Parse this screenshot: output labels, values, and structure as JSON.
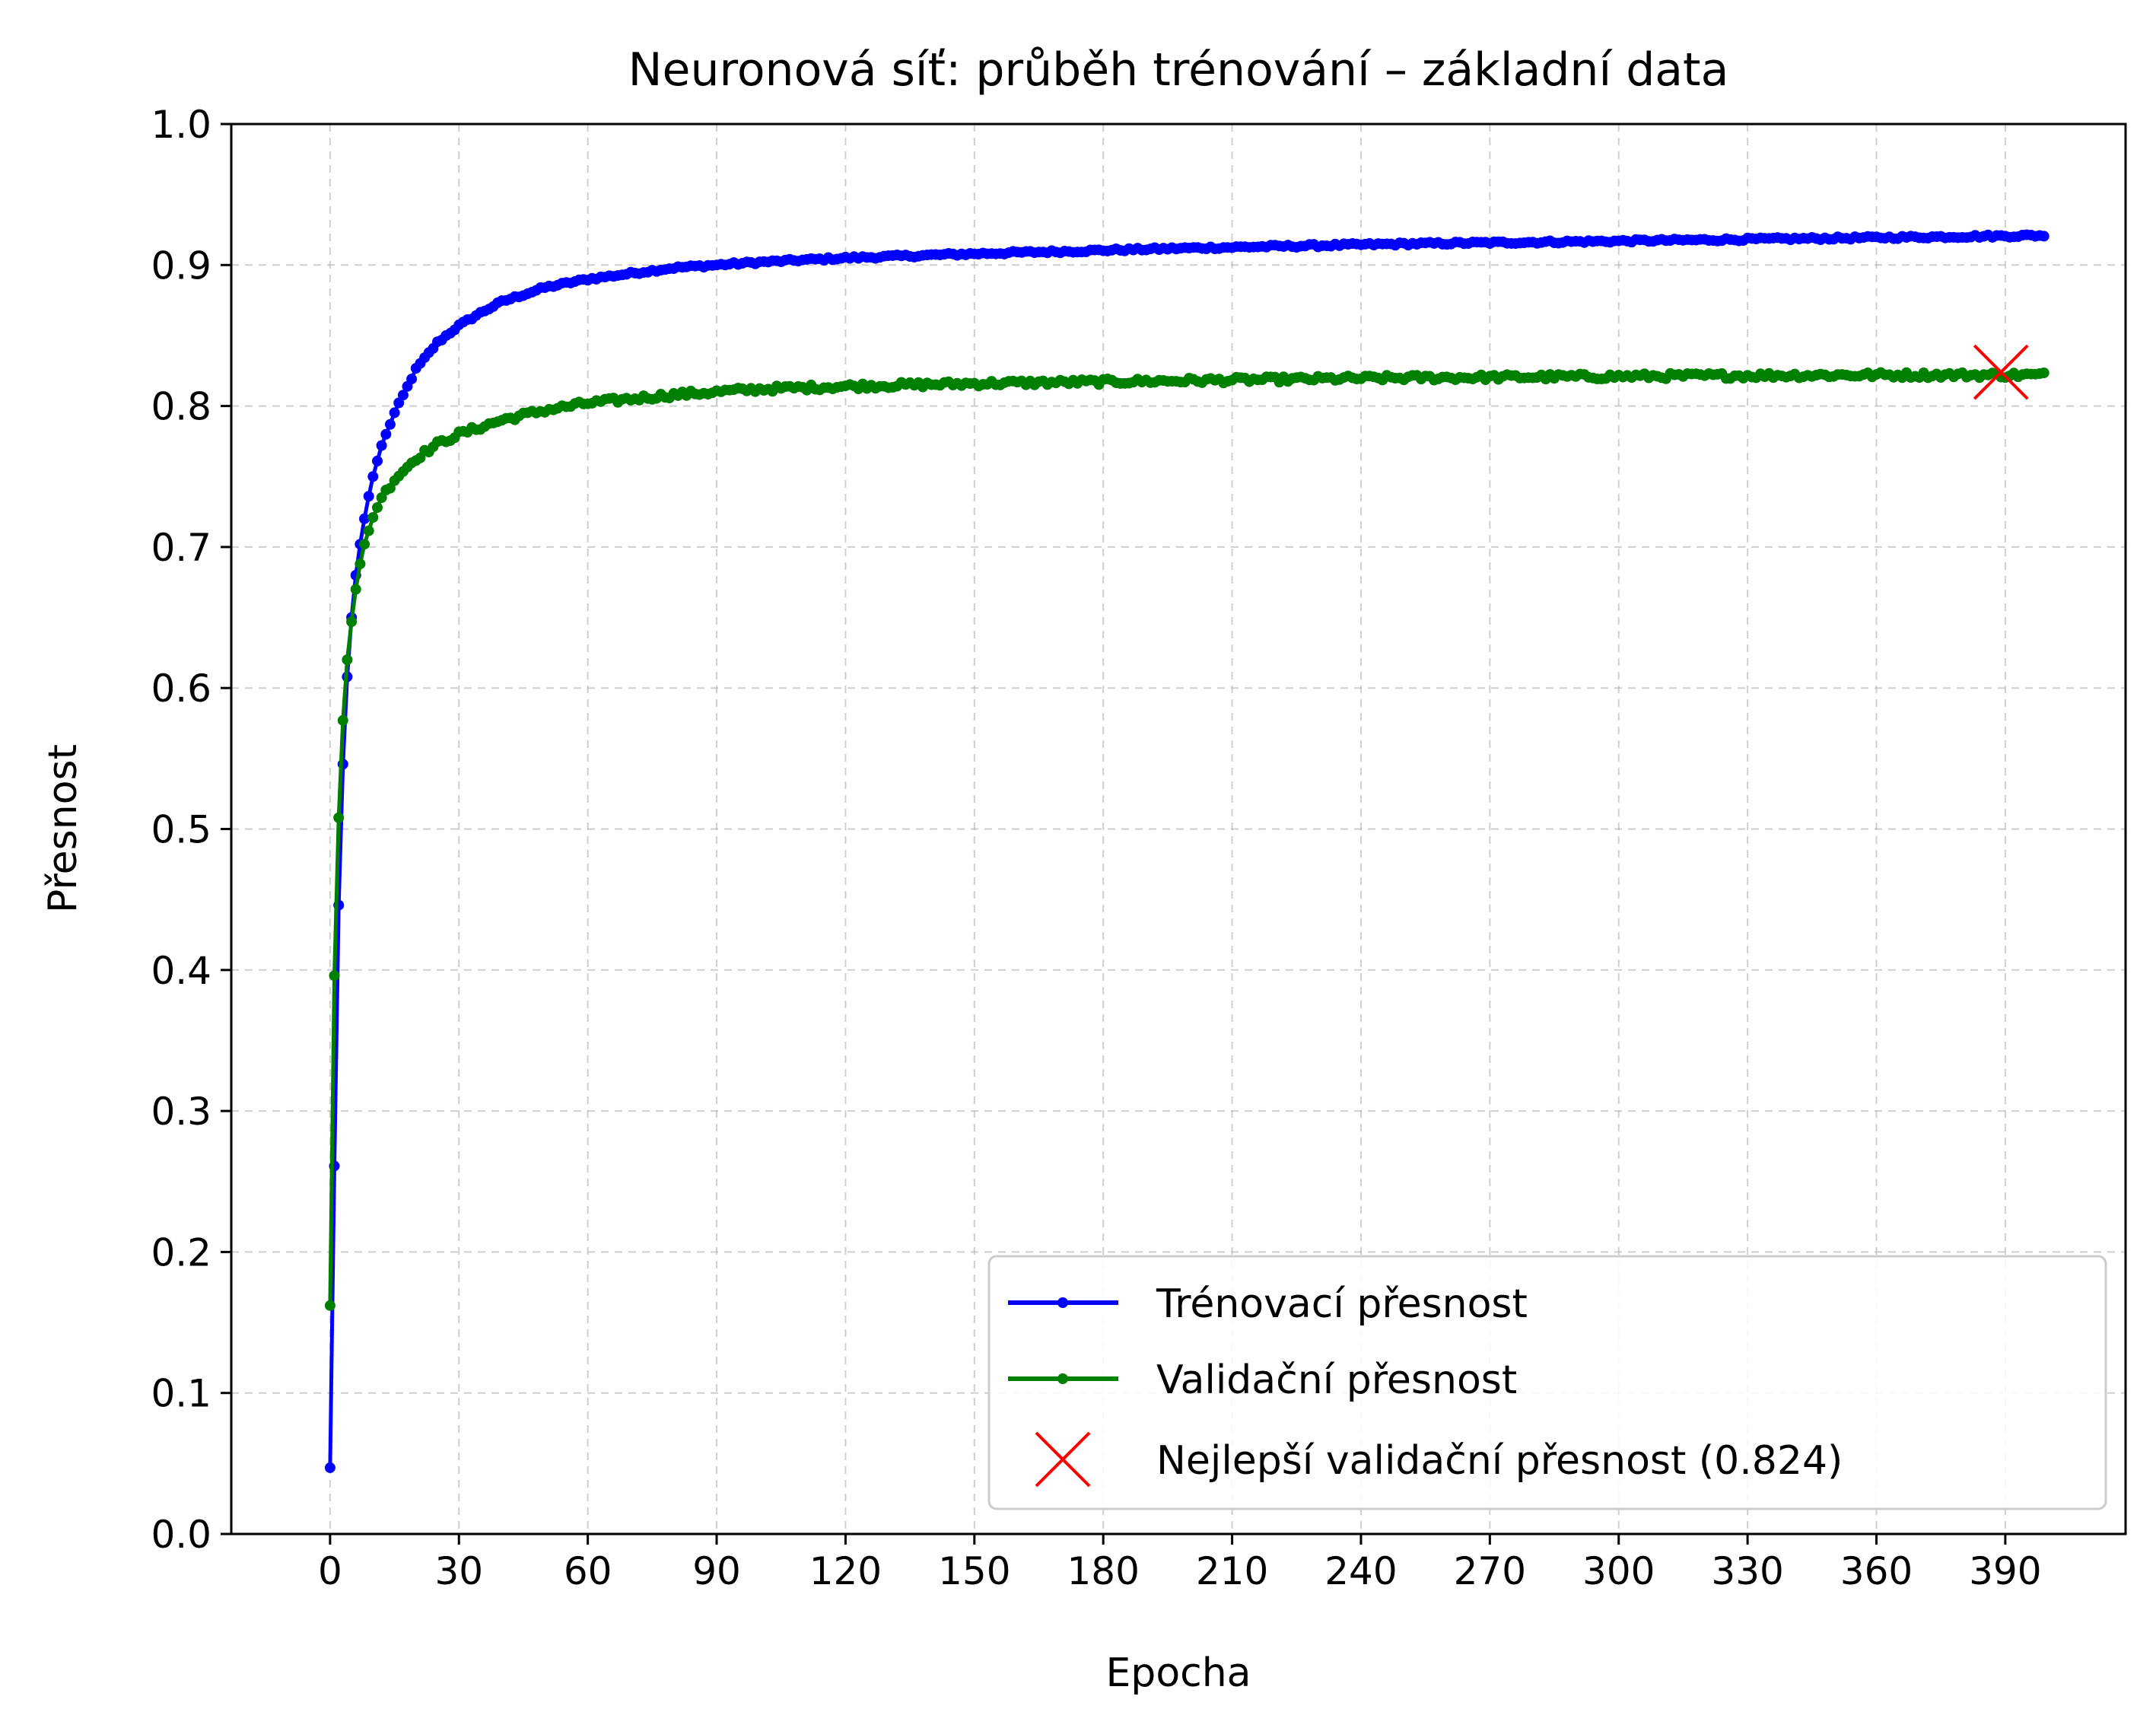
{
  "chart_data": {
    "type": "line",
    "title": "Neuronová síť: průběh trénování – základní data",
    "xlabel": "Epocha",
    "ylabel": "Přesnost",
    "xlim": [
      -23,
      418
    ],
    "ylim": [
      0,
      1.0
    ],
    "xticks": [
      0,
      30,
      60,
      90,
      120,
      150,
      180,
      210,
      240,
      270,
      300,
      330,
      360,
      390
    ],
    "yticks": [
      0.0,
      0.1,
      0.2,
      0.3,
      0.4,
      0.5,
      0.6,
      0.7,
      0.8,
      0.9,
      1.0
    ],
    "grid": true,
    "legend_position": "lower-right",
    "epochs": 400,
    "series": [
      {
        "name": "Trénovací přesnost",
        "color": "#0000ff",
        "marker": "point",
        "anchors": [
          [
            0,
            0.047
          ],
          [
            1,
            0.261
          ],
          [
            2,
            0.446
          ],
          [
            3,
            0.546
          ],
          [
            4,
            0.608
          ],
          [
            5,
            0.65
          ],
          [
            6,
            0.68
          ],
          [
            7,
            0.702
          ],
          [
            8,
            0.72
          ],
          [
            9,
            0.736
          ],
          [
            10,
            0.75
          ],
          [
            12,
            0.772
          ],
          [
            15,
            0.795
          ],
          [
            20,
            0.826
          ],
          [
            25,
            0.845
          ],
          [
            30,
            0.857
          ],
          [
            35,
            0.866
          ],
          [
            40,
            0.874
          ],
          [
            50,
            0.884
          ],
          [
            60,
            0.89
          ],
          [
            80,
            0.898
          ],
          [
            100,
            0.902
          ],
          [
            120,
            0.905
          ],
          [
            150,
            0.908
          ],
          [
            200,
            0.912
          ],
          [
            250,
            0.915
          ],
          [
            300,
            0.917
          ],
          [
            350,
            0.919
          ],
          [
            399,
            0.921
          ]
        ],
        "noise": 0.001
      },
      {
        "name": "Validační přesnost",
        "color": "#008000",
        "marker": "point",
        "anchors": [
          [
            0,
            0.162
          ],
          [
            1,
            0.396
          ],
          [
            2,
            0.508
          ],
          [
            3,
            0.577
          ],
          [
            4,
            0.62
          ],
          [
            5,
            0.647
          ],
          [
            6,
            0.67
          ],
          [
            7,
            0.688
          ],
          [
            8,
            0.702
          ],
          [
            10,
            0.721
          ],
          [
            12,
            0.735
          ],
          [
            15,
            0.748
          ],
          [
            20,
            0.763
          ],
          [
            25,
            0.773
          ],
          [
            30,
            0.78
          ],
          [
            40,
            0.79
          ],
          [
            50,
            0.797
          ],
          [
            60,
            0.802
          ],
          [
            80,
            0.808
          ],
          [
            100,
            0.812
          ],
          [
            120,
            0.814
          ],
          [
            150,
            0.816
          ],
          [
            200,
            0.818
          ],
          [
            250,
            0.82
          ],
          [
            300,
            0.821
          ],
          [
            350,
            0.822
          ],
          [
            399,
            0.822
          ]
        ],
        "noise": 0.002
      }
    ],
    "best_marker": {
      "label": "Nejlepší validační přesnost (0.824)",
      "x": 389,
      "y": 0.824,
      "color": "#ff0000",
      "marker": "x"
    }
  }
}
